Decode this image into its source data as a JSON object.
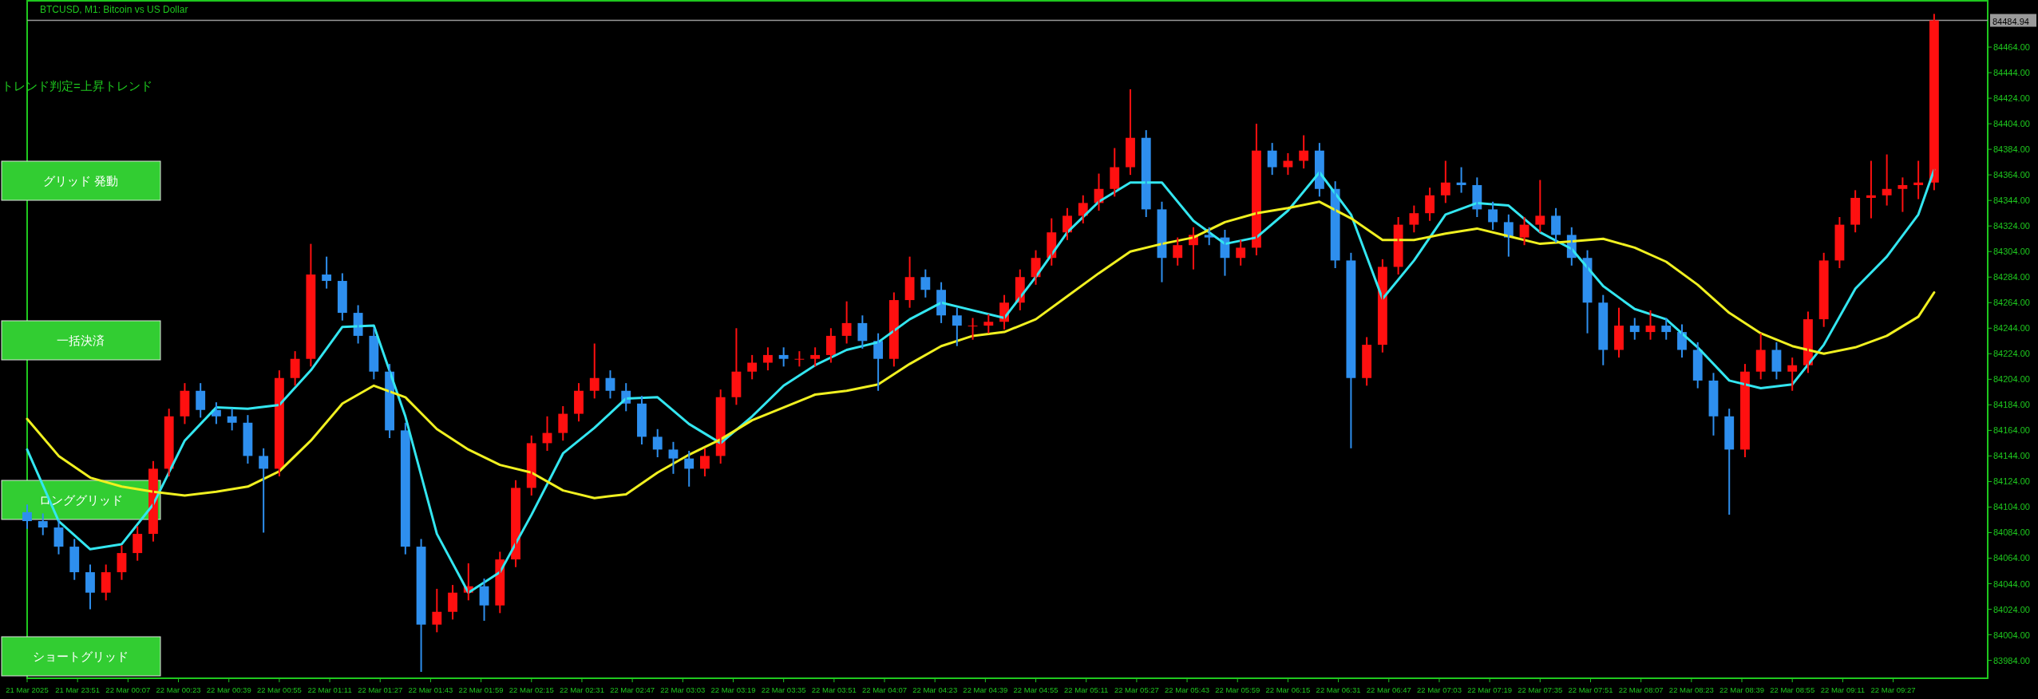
{
  "chart_data": {
    "type": "candlestick",
    "title": "BTCUSD, M1:  Bitcoin vs US Dollar",
    "annotations": [
      "トレンド判定=上昇トレンド",
      "グリッド 発動",
      "一括決済",
      "ロンググリッド",
      "ショートグリッド"
    ],
    "x": [
      "2025-03-21T23:35",
      "2025-03-21T23:40",
      "2025-03-21T23:45",
      "2025-03-21T23:50",
      "2025-03-21T23:55",
      "2025-03-22T00:00",
      "2025-03-22T00:05",
      "2025-03-22T00:10",
      "2025-03-22T00:15",
      "2025-03-22T00:20",
      "2025-03-22T00:25",
      "2025-03-22T00:30",
      "2025-03-22T00:35",
      "2025-03-22T00:40",
      "2025-03-22T00:45",
      "2025-03-22T00:50",
      "2025-03-22T00:55",
      "2025-03-22T01:00",
      "2025-03-22T01:05",
      "2025-03-22T01:10",
      "2025-03-22T01:15",
      "2025-03-22T01:20",
      "2025-03-22T01:25",
      "2025-03-22T01:30",
      "2025-03-22T01:35",
      "2025-03-22T01:40",
      "2025-03-22T01:45",
      "2025-03-22T01:50",
      "2025-03-22T01:55",
      "2025-03-22T02:00",
      "2025-03-22T02:05",
      "2025-03-22T02:10",
      "2025-03-22T02:15",
      "2025-03-22T02:20",
      "2025-03-22T02:25",
      "2025-03-22T02:30",
      "2025-03-22T02:35",
      "2025-03-22T02:40",
      "2025-03-22T02:45",
      "2025-03-22T02:50",
      "2025-03-22T02:55",
      "2025-03-22T03:00",
      "2025-03-22T03:05",
      "2025-03-22T03:10",
      "2025-03-22T03:15",
      "2025-03-22T03:20",
      "2025-03-22T03:25",
      "2025-03-22T03:30",
      "2025-03-22T03:35",
      "2025-03-22T03:40",
      "2025-03-22T03:45",
      "2025-03-22T03:50",
      "2025-03-22T03:55",
      "2025-03-22T04:00",
      "2025-03-22T04:05",
      "2025-03-22T04:10",
      "2025-03-22T04:15",
      "2025-03-22T04:20",
      "2025-03-22T04:25",
      "2025-03-22T04:30",
      "2025-03-22T04:35",
      "2025-03-22T04:40",
      "2025-03-22T04:45",
      "2025-03-22T04:50",
      "2025-03-22T04:55",
      "2025-03-22T05:00",
      "2025-03-22T05:05",
      "2025-03-22T05:10",
      "2025-03-22T05:15",
      "2025-03-22T05:20",
      "2025-03-22T05:25",
      "2025-03-22T05:30",
      "2025-03-22T05:35",
      "2025-03-22T05:40",
      "2025-03-22T05:45",
      "2025-03-22T05:50",
      "2025-03-22T05:55",
      "2025-03-22T06:00",
      "2025-03-22T06:05",
      "2025-03-22T06:10",
      "2025-03-22T06:15",
      "2025-03-22T06:20",
      "2025-03-22T06:25",
      "2025-03-22T06:30",
      "2025-03-22T06:35",
      "2025-03-22T06:40",
      "2025-03-22T06:45",
      "2025-03-22T06:50",
      "2025-03-22T06:55",
      "2025-03-22T07:00",
      "2025-03-22T07:05",
      "2025-03-22T07:10",
      "2025-03-22T07:15",
      "2025-03-22T07:20",
      "2025-03-22T07:25",
      "2025-03-22T07:30",
      "2025-03-22T07:35",
      "2025-03-22T07:40",
      "2025-03-22T07:45",
      "2025-03-22T07:50",
      "2025-03-22T07:55",
      "2025-03-22T08:00",
      "2025-03-22T08:05",
      "2025-03-22T08:10",
      "2025-03-22T08:15",
      "2025-03-22T08:20",
      "2025-03-22T08:25",
      "2025-03-22T08:30",
      "2025-03-22T08:35",
      "2025-03-22T08:40",
      "2025-03-22T08:45",
      "2025-03-22T08:50",
      "2025-03-22T08:55",
      "2025-03-22T09:00",
      "2025-03-22T09:05",
      "2025-03-22T09:10",
      "2025-03-22T09:15",
      "2025-03-22T09:20",
      "2025-03-22T09:25",
      "2025-03-22T09:30",
      "2025-03-22T09:35",
      "2025-03-22T09:40"
    ],
    "ohlc": [
      [
        84100,
        84106,
        84087,
        84093
      ],
      [
        84093,
        84099,
        84082,
        84088
      ],
      [
        84088,
        84094,
        84067,
        84073
      ],
      [
        84073,
        84079,
        84047,
        84053
      ],
      [
        84053,
        84059,
        84024,
        84037
      ],
      [
        84037,
        84059,
        84031,
        84053
      ],
      [
        84053,
        84074,
        84047,
        84068
      ],
      [
        84068,
        84089,
        84062,
        84083
      ],
      [
        84083,
        84140,
        84077,
        84134
      ],
      [
        84134,
        84181,
        84128,
        84175
      ],
      [
        84175,
        84201,
        84169,
        84195
      ],
      [
        84195,
        84201,
        84174,
        84180
      ],
      [
        84180,
        84186,
        84169,
        84175
      ],
      [
        84175,
        84181,
        84164,
        84170
      ],
      [
        84170,
        84176,
        84138,
        84144
      ],
      [
        84144,
        84150,
        84084,
        84134
      ],
      [
        84134,
        84211,
        84128,
        84205
      ],
      [
        84205,
        84226,
        84199,
        84220
      ],
      [
        84220,
        84310,
        84214,
        84286
      ],
      [
        84286,
        84300,
        84275,
        84281
      ],
      [
        84281,
        84287,
        84250,
        84256
      ],
      [
        84256,
        84262,
        84232,
        84238
      ],
      [
        84238,
        84244,
        84204,
        84210
      ],
      [
        84210,
        84216,
        84158,
        84164
      ],
      [
        84164,
        84170,
        84067,
        84073
      ],
      [
        84073,
        84079,
        83975,
        84012
      ],
      [
        84012,
        84040,
        84006,
        84022
      ],
      [
        84022,
        84043,
        84016,
        84037
      ],
      [
        84037,
        84060,
        84031,
        84042
      ],
      [
        84042,
        84048,
        84015,
        84027
      ],
      [
        84027,
        84069,
        84021,
        84063
      ],
      [
        84063,
        84125,
        84057,
        84119
      ],
      [
        84119,
        84160,
        84113,
        84154
      ],
      [
        84154,
        84175,
        84148,
        84162
      ],
      [
        84162,
        84183,
        84156,
        84177
      ],
      [
        84177,
        84201,
        84171,
        84195
      ],
      [
        84195,
        84232,
        84189,
        84205
      ],
      [
        84205,
        84211,
        84189,
        84195
      ],
      [
        84195,
        84201,
        84179,
        84185
      ],
      [
        84185,
        84191,
        84153,
        84159
      ],
      [
        84159,
        84165,
        84143,
        84149
      ],
      [
        84149,
        84155,
        84130,
        84142
      ],
      [
        84142,
        84148,
        84120,
        84134
      ],
      [
        84134,
        84150,
        84128,
        84144
      ],
      [
        84144,
        84196,
        84138,
        84190
      ],
      [
        84190,
        84244,
        84184,
        84210
      ],
      [
        84210,
        84223,
        84204,
        84217
      ],
      [
        84217,
        84229,
        84211,
        84223
      ],
      [
        84223,
        84229,
        84214,
        84220
      ],
      [
        84220,
        84226,
        84214,
        84220
      ],
      [
        84220,
        84229,
        84214,
        84223
      ],
      [
        84223,
        84244,
        84217,
        84238
      ],
      [
        84238,
        84265,
        84232,
        84248
      ],
      [
        84248,
        84254,
        84228,
        84234
      ],
      [
        84234,
        84240,
        84195,
        84220
      ],
      [
        84220,
        84272,
        84214,
        84266
      ],
      [
        84266,
        84300,
        84260,
        84284
      ],
      [
        84284,
        84290,
        84268,
        84274
      ],
      [
        84274,
        84280,
        84248,
        84254
      ],
      [
        84254,
        84260,
        84230,
        84246
      ],
      [
        84246,
        84252,
        84235,
        84246
      ],
      [
        84246,
        84255,
        84240,
        84249
      ],
      [
        84249,
        84270,
        84243,
        84264
      ],
      [
        84264,
        84290,
        84258,
        84284
      ],
      [
        84284,
        84305,
        84278,
        84299
      ],
      [
        84299,
        84330,
        84293,
        84319
      ],
      [
        84319,
        84338,
        84313,
        84332
      ],
      [
        84332,
        84348,
        84326,
        84342
      ],
      [
        84342,
        84365,
        84336,
        84353
      ],
      [
        84353,
        84385,
        84347,
        84370
      ],
      [
        84370,
        84431,
        84364,
        84393
      ],
      [
        84393,
        84399,
        84331,
        84337
      ],
      [
        84337,
        84343,
        84280,
        84299
      ],
      [
        84299,
        84315,
        84293,
        84309
      ],
      [
        84309,
        84323,
        84290,
        84317
      ],
      [
        84317,
        84323,
        84309,
        84315
      ],
      [
        84315,
        84321,
        84285,
        84299
      ],
      [
        84299,
        84313,
        84293,
        84307
      ],
      [
        84307,
        84404,
        84301,
        84383
      ],
      [
        84383,
        84389,
        84364,
        84370
      ],
      [
        84370,
        84381,
        84364,
        84375
      ],
      [
        84375,
        84395,
        84369,
        84383
      ],
      [
        84383,
        84389,
        84347,
        84353
      ],
      [
        84353,
        84359,
        84291,
        84297
      ],
      [
        84297,
        84303,
        84150,
        84205
      ],
      [
        84205,
        84237,
        84199,
        84231
      ],
      [
        84231,
        84298,
        84225,
        84292
      ],
      [
        84292,
        84331,
        84286,
        84325
      ],
      [
        84325,
        84340,
        84319,
        84334
      ],
      [
        84334,
        84354,
        84328,
        84348
      ],
      [
        84348,
        84375,
        84342,
        84358
      ],
      [
        84358,
        84370,
        84350,
        84356
      ],
      [
        84356,
        84362,
        84331,
        84337
      ],
      [
        84337,
        84343,
        84321,
        84327
      ],
      [
        84327,
        84333,
        84300,
        84315
      ],
      [
        84315,
        84331,
        84309,
        84325
      ],
      [
        84325,
        84360,
        84319,
        84332
      ],
      [
        84332,
        84338,
        84311,
        84317
      ],
      [
        84317,
        84323,
        84293,
        84299
      ],
      [
        84299,
        84305,
        84240,
        84264
      ],
      [
        84264,
        84270,
        84215,
        84227
      ],
      [
        84227,
        84260,
        84221,
        84246
      ],
      [
        84246,
        84252,
        84235,
        84241
      ],
      [
        84241,
        84258,
        84235,
        84246
      ],
      [
        84246,
        84252,
        84235,
        84241
      ],
      [
        84241,
        84247,
        84221,
        84227
      ],
      [
        84227,
        84233,
        84197,
        84203
      ],
      [
        84203,
        84209,
        84160,
        84175
      ],
      [
        84175,
        84181,
        84098,
        84149
      ],
      [
        84149,
        84216,
        84143,
        84210
      ],
      [
        84210,
        84240,
        84204,
        84227
      ],
      [
        84227,
        84233,
        84204,
        84210
      ],
      [
        84210,
        84221,
        84195,
        84215
      ],
      [
        84215,
        84257,
        84209,
        84251
      ],
      [
        84251,
        84303,
        84245,
        84297
      ],
      [
        84297,
        84331,
        84291,
        84325
      ],
      [
        84325,
        84352,
        84319,
        84346
      ],
      [
        84346,
        84375,
        84330,
        84348
      ],
      [
        84348,
        84380,
        84340,
        84353
      ],
      [
        84353,
        84362,
        84335,
        84356
      ],
      [
        84356,
        84375,
        84345,
        84358
      ],
      [
        84358,
        84490,
        84352,
        84484.94
      ]
    ],
    "series": [
      {
        "type": "line",
        "color": "#33e6f0",
        "x": [
          "2025-03-21T23:35",
          "2025-03-21T23:45",
          "2025-03-21T23:55",
          "2025-03-22T00:05",
          "2025-03-22T00:15",
          "2025-03-22T00:25",
          "2025-03-22T00:35",
          "2025-03-22T00:45",
          "2025-03-22T00:55",
          "2025-03-22T01:05",
          "2025-03-22T01:15",
          "2025-03-22T01:25",
          "2025-03-22T01:35",
          "2025-03-22T01:45",
          "2025-03-22T01:55",
          "2025-03-22T02:05",
          "2025-03-22T02:15",
          "2025-03-22T02:25",
          "2025-03-22T02:35",
          "2025-03-22T02:45",
          "2025-03-22T02:55",
          "2025-03-22T03:05",
          "2025-03-22T03:15",
          "2025-03-22T03:25",
          "2025-03-22T03:35",
          "2025-03-22T03:45",
          "2025-03-22T03:55",
          "2025-03-22T04:05",
          "2025-03-22T04:15",
          "2025-03-22T04:25",
          "2025-03-22T04:35",
          "2025-03-22T04:45",
          "2025-03-22T04:55",
          "2025-03-22T05:05",
          "2025-03-22T05:15",
          "2025-03-22T05:25",
          "2025-03-22T05:35",
          "2025-03-22T05:45",
          "2025-03-22T05:55",
          "2025-03-22T06:05",
          "2025-03-22T06:15",
          "2025-03-22T06:25",
          "2025-03-22T06:35",
          "2025-03-22T06:45",
          "2025-03-22T06:55",
          "2025-03-22T07:05",
          "2025-03-22T07:15",
          "2025-03-22T07:25",
          "2025-03-22T07:35",
          "2025-03-22T07:45",
          "2025-03-22T07:55",
          "2025-03-22T08:05",
          "2025-03-22T08:15",
          "2025-03-22T08:25",
          "2025-03-22T08:35",
          "2025-03-22T08:45",
          "2025-03-22T08:55",
          "2025-03-22T09:05",
          "2025-03-22T09:15",
          "2025-03-22T09:25",
          "2025-03-22T09:35",
          "2025-03-22T09:40"
        ],
        "values": [
          84149,
          84093,
          84071,
          84075,
          84106,
          84156,
          84182,
          84181,
          84184,
          84211,
          84245,
          84246,
          84175,
          84083,
          84037,
          84053,
          84098,
          84146,
          84166,
          84189,
          84190,
          84169,
          84154,
          84175,
          84199,
          84215,
          84227,
          84233,
          84251,
          84264,
          84258,
          84252,
          84284,
          84319,
          84343,
          84358,
          84358,
          84328,
          84310,
          84315,
          84336,
          84366,
          84333,
          84267,
          84297,
          84333,
          84342,
          84340,
          84319,
          84306,
          84277,
          84259,
          84251,
          84229,
          84203,
          84197,
          84200,
          84231,
          84275,
          84300,
          84333,
          84368
        ]
      },
      {
        "type": "line",
        "color": "#f0f020",
        "x": [
          "2025-03-21T23:35",
          "2025-03-21T23:45",
          "2025-03-21T23:55",
          "2025-03-22T00:05",
          "2025-03-22T00:15",
          "2025-03-22T00:25",
          "2025-03-22T00:35",
          "2025-03-22T00:45",
          "2025-03-22T00:55",
          "2025-03-22T01:05",
          "2025-03-22T01:15",
          "2025-03-22T01:25",
          "2025-03-22T01:35",
          "2025-03-22T01:45",
          "2025-03-22T01:55",
          "2025-03-22T02:05",
          "2025-03-22T02:15",
          "2025-03-22T02:25",
          "2025-03-22T02:35",
          "2025-03-22T02:45",
          "2025-03-22T02:55",
          "2025-03-22T03:05",
          "2025-03-22T03:15",
          "2025-03-22T03:25",
          "2025-03-22T03:35",
          "2025-03-22T03:45",
          "2025-03-22T03:55",
          "2025-03-22T04:05",
          "2025-03-22T04:15",
          "2025-03-22T04:25",
          "2025-03-22T04:35",
          "2025-03-22T04:45",
          "2025-03-22T04:55",
          "2025-03-22T05:05",
          "2025-03-22T05:15",
          "2025-03-22T05:25",
          "2025-03-22T05:35",
          "2025-03-22T05:45",
          "2025-03-22T05:55",
          "2025-03-22T06:05",
          "2025-03-22T06:15",
          "2025-03-22T06:25",
          "2025-03-22T06:35",
          "2025-03-22T06:45",
          "2025-03-22T06:55",
          "2025-03-22T07:05",
          "2025-03-22T07:15",
          "2025-03-22T07:25",
          "2025-03-22T07:35",
          "2025-03-22T07:45",
          "2025-03-22T07:55",
          "2025-03-22T08:05",
          "2025-03-22T08:15",
          "2025-03-22T08:25",
          "2025-03-22T08:35",
          "2025-03-22T08:45",
          "2025-03-22T08:55",
          "2025-03-22T09:05",
          "2025-03-22T09:15",
          "2025-03-22T09:25",
          "2025-03-22T09:35",
          "2025-03-22T09:40"
        ],
        "values": [
          84173,
          84144,
          84127,
          84120,
          84116,
          84113,
          84116,
          84120,
          84132,
          84156,
          84185,
          84199,
          84190,
          84165,
          84149,
          84137,
          84131,
          84117,
          84111,
          84114,
          84131,
          84145,
          84157,
          84172,
          84182,
          84192,
          84195,
          84200,
          84216,
          84230,
          84238,
          84241,
          84251,
          84269,
          84287,
          84304,
          84310,
          84315,
          84327,
          84334,
          84338,
          84343,
          84330,
          84313,
          84313,
          84318,
          84322,
          84316,
          84310,
          84312,
          84314,
          84307,
          84296,
          84278,
          84256,
          84240,
          84230,
          84224,
          84229,
          84238,
          84253,
          84272
        ]
      }
    ],
    "ref_lines": [
      {
        "axis": "y",
        "value": 84484.94,
        "label": "84484.94",
        "color": "#9a9a9a"
      }
    ],
    "xlim": [
      "2025-03-21T23:35",
      "2025-03-22T09:57"
    ],
    "xticks": [
      {
        "value": "2025-03-21T23:35",
        "label": "21 Mar 2025"
      },
      {
        "value": "2025-03-21T23:51",
        "label": "21 Mar 23:51"
      },
      {
        "value": "2025-03-22T00:07",
        "label": "22 Mar 00:07"
      },
      {
        "value": "2025-03-22T00:23",
        "label": "22 Mar 00:23"
      },
      {
        "value": "2025-03-22T00:39",
        "label": "22 Mar 00:39"
      },
      {
        "value": "2025-03-22T00:55",
        "label": "22 Mar 00:55"
      },
      {
        "value": "2025-03-22T01:11",
        "label": "22 Mar 01:11"
      },
      {
        "value": "2025-03-22T01:27",
        "label": "22 Mar 01:27"
      },
      {
        "value": "2025-03-22T01:43",
        "label": "22 Mar 01:43"
      },
      {
        "value": "2025-03-22T01:59",
        "label": "22 Mar 01:59"
      },
      {
        "value": "2025-03-22T02:15",
        "label": "22 Mar 02:15"
      },
      {
        "value": "2025-03-22T02:31",
        "label": "22 Mar 02:31"
      },
      {
        "value": "2025-03-22T02:47",
        "label": "22 Mar 02:47"
      },
      {
        "value": "2025-03-22T03:03",
        "label": "22 Mar 03:03"
      },
      {
        "value": "2025-03-22T03:19",
        "label": "22 Mar 03:19"
      },
      {
        "value": "2025-03-22T03:35",
        "label": "22 Mar 03:35"
      },
      {
        "value": "2025-03-22T03:51",
        "label": "22 Mar 03:51"
      },
      {
        "value": "2025-03-22T04:07",
        "label": "22 Mar 04:07"
      },
      {
        "value": "2025-03-22T04:23",
        "label": "22 Mar 04:23"
      },
      {
        "value": "2025-03-22T04:39",
        "label": "22 Mar 04:39"
      },
      {
        "value": "2025-03-22T04:55",
        "label": "22 Mar 04:55"
      },
      {
        "value": "2025-03-22T05:11",
        "label": "22 Mar 05:11"
      },
      {
        "value": "2025-03-22T05:27",
        "label": "22 Mar 05:27"
      },
      {
        "value": "2025-03-22T05:43",
        "label": "22 Mar 05:43"
      },
      {
        "value": "2025-03-22T05:59",
        "label": "22 Mar 05:59"
      },
      {
        "value": "2025-03-22T06:15",
        "label": "22 Mar 06:15"
      },
      {
        "value": "2025-03-22T06:31",
        "label": "22 Mar 06:31"
      },
      {
        "value": "2025-03-22T06:47",
        "label": "22 Mar 06:47"
      },
      {
        "value": "2025-03-22T07:03",
        "label": "22 Mar 07:03"
      },
      {
        "value": "2025-03-22T07:19",
        "label": "22 Mar 07:19"
      },
      {
        "value": "2025-03-22T07:35",
        "label": "22 Mar 07:35"
      },
      {
        "value": "2025-03-22T07:51",
        "label": "22 Mar 07:51"
      },
      {
        "value": "2025-03-22T08:07",
        "label": "22 Mar 08:07"
      },
      {
        "value": "2025-03-22T08:23",
        "label": "22 Mar 08:23"
      },
      {
        "value": "2025-03-22T08:39",
        "label": "22 Mar 08:39"
      },
      {
        "value": "2025-03-22T08:55",
        "label": "22 Mar 08:55"
      },
      {
        "value": "2025-03-22T09:11",
        "label": "22 Mar 09:11"
      },
      {
        "value": "2025-03-22T09:27",
        "label": "22 Mar 09:27"
      }
    ],
    "ylim": [
      83970,
      84499
    ],
    "yticks": [
      {
        "value": 84464,
        "label": "84464.00"
      },
      {
        "value": 84444,
        "label": "84444.00"
      },
      {
        "value": 84424,
        "label": "84424.00"
      },
      {
        "value": 84404,
        "label": "84404.00"
      },
      {
        "value": 84384,
        "label": "84384.00"
      },
      {
        "value": 84364,
        "label": "84364.00"
      },
      {
        "value": 84344,
        "label": "84344.00"
      },
      {
        "value": 84324,
        "label": "84324.00"
      },
      {
        "value": 84304,
        "label": "84304.00"
      },
      {
        "value": 84284,
        "label": "84284.00"
      },
      {
        "value": 84264,
        "label": "84264.00"
      },
      {
        "value": 84244,
        "label": "84244.00"
      },
      {
        "value": 84224,
        "label": "84224.00"
      },
      {
        "value": 84204,
        "label": "84204.00"
      },
      {
        "value": 84184,
        "label": "84184.00"
      },
      {
        "value": 84164,
        "label": "84164.00"
      },
      {
        "value": 84144,
        "label": "84144.00"
      },
      {
        "value": 84124,
        "label": "84124.00"
      },
      {
        "value": 84104,
        "label": "84104.00"
      },
      {
        "value": 84084,
        "label": "84084.00"
      },
      {
        "value": 84064,
        "label": "84064.00"
      },
      {
        "value": 84044,
        "label": "84044.00"
      },
      {
        "value": 84024,
        "label": "84024.00"
      },
      {
        "value": 84004,
        "label": "84004.00"
      },
      {
        "value": 83984,
        "label": "83984.00"
      }
    ]
  }
}
